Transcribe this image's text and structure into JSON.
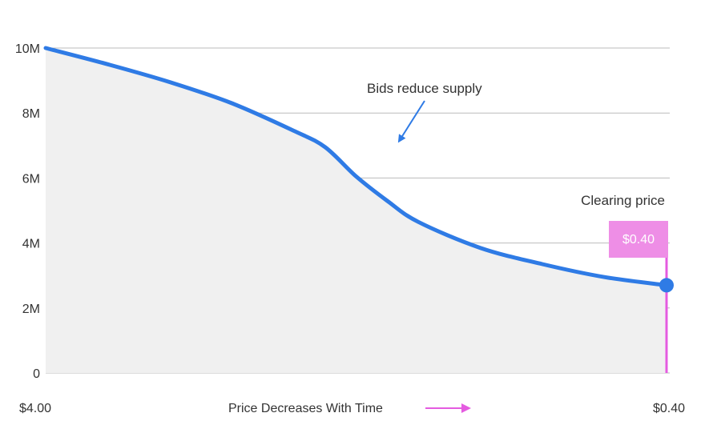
{
  "chart_data": {
    "type": "area",
    "x_start_label": "$4.00",
    "x_end_label": "$0.40",
    "xlabel": "Price Decreases With Time",
    "ylabel": "",
    "title": "",
    "y_ticks": [
      "0",
      "2M",
      "4M",
      "6M",
      "8M",
      "10M"
    ],
    "y_tick_values": [
      0,
      2000000,
      4000000,
      6000000,
      8000000,
      10000000
    ],
    "ylim": [
      0,
      10000000
    ],
    "grid": true,
    "series": [
      {
        "x": [
          4.0,
          3.64,
          3.28,
          2.92,
          2.56,
          2.38,
          2.2,
          2.02,
          1.84,
          1.48,
          1.12,
          0.76,
          0.4
        ],
        "values": [
          10000000,
          9500000,
          8950000,
          8300000,
          7450000,
          6950000,
          6050000,
          5300000,
          4650000,
          3850000,
          3350000,
          2950000,
          2700000
        ]
      }
    ],
    "annotations": {
      "bids": "Bids reduce supply",
      "clearing": "Clearing price",
      "clearing_value": "$0.40",
      "clearing_x": 0.4,
      "clearing_y": 2700000
    },
    "colors": {
      "line": "#2f7be5",
      "fill": "#f0f0f0",
      "grid": "#bbbbbb",
      "accent": "#e45be0",
      "label_bg": "#ee8ee6"
    }
  }
}
